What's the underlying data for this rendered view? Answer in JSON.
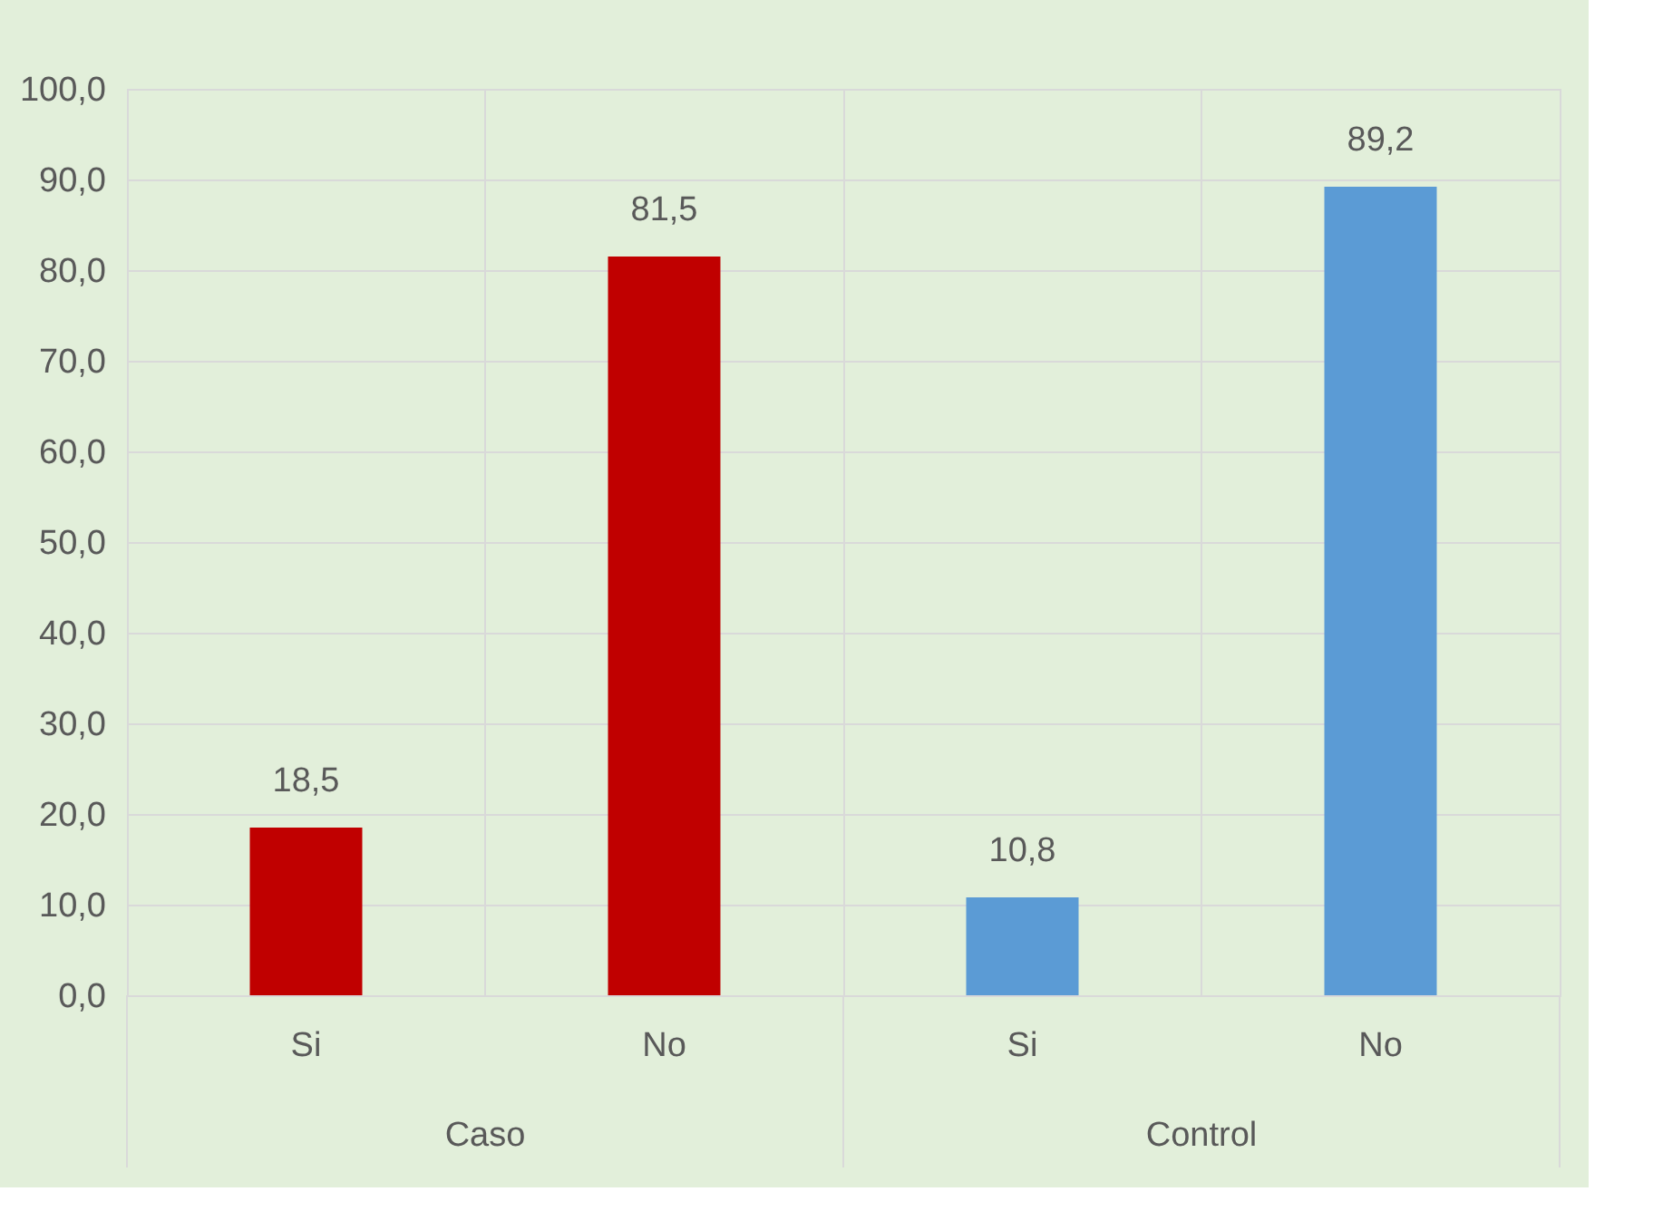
{
  "chart_data": {
    "type": "bar",
    "categories": [
      "Si",
      "No",
      "Si",
      "No"
    ],
    "values": [
      18.5,
      81.5,
      10.8,
      89.2
    ],
    "colors": [
      "#c00000",
      "#c00000",
      "#5b9bd5",
      "#5b9bd5"
    ],
    "annotations": [
      "Caso",
      "Control"
    ],
    "ylim": [
      0,
      100
    ],
    "yticks": [
      {
        "value": 0,
        "label": "0,0"
      },
      {
        "value": 10,
        "label": "10,0"
      },
      {
        "value": 20,
        "label": "20,0"
      },
      {
        "value": 30,
        "label": "30,0"
      },
      {
        "value": 40,
        "label": "40,0"
      },
      {
        "value": 50,
        "label": "50,0"
      },
      {
        "value": 60,
        "label": "60,0"
      },
      {
        "value": 70,
        "label": "70,0"
      },
      {
        "value": 80,
        "label": "80,0"
      },
      {
        "value": 90,
        "label": "90,0"
      },
      {
        "value": 100,
        "label": "100,0"
      }
    ],
    "value_labels": [
      "18,5",
      "81,5",
      "10,8",
      "89,2"
    ],
    "grid": true
  }
}
